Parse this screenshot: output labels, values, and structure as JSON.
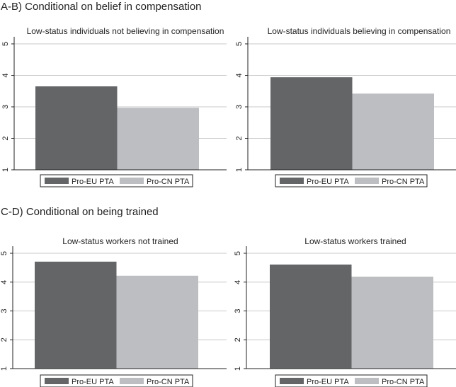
{
  "sections": [
    {
      "heading": "A-B) Conditional on belief in compensation"
    },
    {
      "heading": "C-D) Conditional on being trained"
    }
  ],
  "colors": {
    "eu": "#646567",
    "cn": "#bdbec1",
    "grid": "#c8c8c8",
    "axis": "#222222"
  },
  "chart_data": [
    {
      "type": "bar",
      "title": "Low-status individuals not believing in compensation",
      "categories": [
        "Pro-EU PTA",
        "Pro-CN PTA"
      ],
      "values": [
        3.65,
        2.97
      ],
      "ylim": [
        1,
        5
      ],
      "yticks": [
        "1",
        "2",
        "3",
        "4",
        "5"
      ],
      "grid": true,
      "legend": "bottom"
    },
    {
      "type": "bar",
      "title": "Low-status individuals believing in compensation",
      "categories": [
        "Pro-EU PTA",
        "Pro-CN PTA"
      ],
      "values": [
        3.94,
        3.42
      ],
      "ylim": [
        1,
        5
      ],
      "yticks": [
        "1",
        "2",
        "3",
        "4",
        "5"
      ],
      "grid": true,
      "legend": "bottom"
    },
    {
      "type": "bar",
      "title": "Low-status workers not trained",
      "categories": [
        "Pro-EU PTA",
        "Pro-CN PTA"
      ],
      "values": [
        4.71,
        4.22
      ],
      "ylim": [
        1,
        5
      ],
      "yticks": [
        "1",
        "2",
        "3",
        "4",
        "5"
      ],
      "grid": true,
      "legend": "bottom"
    },
    {
      "type": "bar",
      "title": "Low-status workers trained",
      "categories": [
        "Pro-EU PTA",
        "Pro-CN PTA"
      ],
      "values": [
        4.61,
        4.19
      ],
      "ylim": [
        1,
        5
      ],
      "yticks": [
        "1",
        "2",
        "3",
        "4",
        "5"
      ],
      "grid": true,
      "legend": "bottom"
    }
  ]
}
